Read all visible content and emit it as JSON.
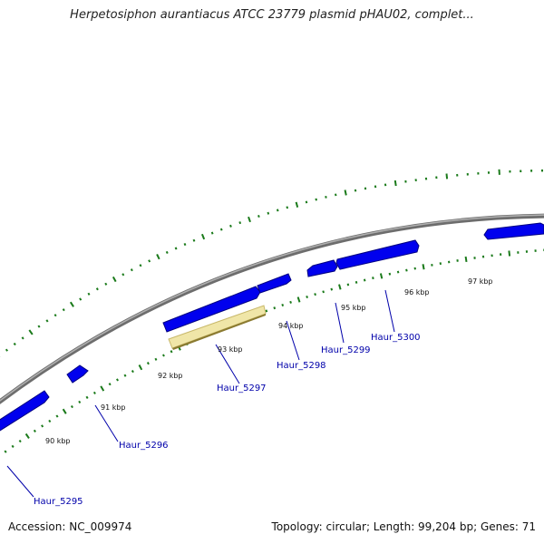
{
  "title": "Herpetosiphon aurantiacus ATCC 23779 plasmid pHAU02, complet...",
  "accession": "Accession: NC_009974",
  "summary": "Topology: circular; Length: 99,204 bp; Genes: 71",
  "colors": {
    "backbone": "#888888",
    "gene": "#0000ee",
    "highlight": "#f0e6a8",
    "tick": "#1a7a1a",
    "label": "#0000aa"
  },
  "scale_labels": [
    "90 kbp",
    "91 kbp",
    "92 kbp",
    "93 kbp",
    "94 kbp",
    "95 kbp",
    "96 kbp",
    "97 kbp"
  ],
  "genes": [
    {
      "label": "Haur_5295"
    },
    {
      "label": "Haur_5296"
    },
    {
      "label": "Haur_5297"
    },
    {
      "label": "Haur_5298"
    },
    {
      "label": "Haur_5299"
    },
    {
      "label": "Haur_5300"
    }
  ]
}
